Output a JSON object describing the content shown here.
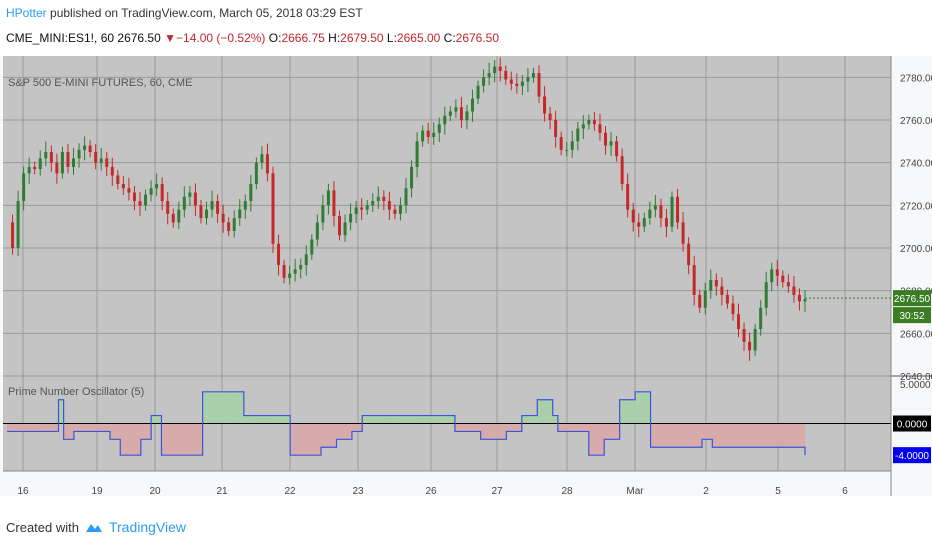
{
  "header": {
    "author": "HPotter",
    "published_text": "published on TradingView.com, March 05, 2018 03:29 EST",
    "symbol_line": {
      "symbol": "CME_MINI:ES1!, 60",
      "last": "2676.50",
      "change": "−14.00 (−0.52%)",
      "o_label": "O:",
      "o": "2666.75",
      "h_label": "H:",
      "h": "2679.50",
      "l_label": "L:",
      "l": "2665.00",
      "c_label": "C:",
      "c": "2676.50"
    }
  },
  "footer": {
    "created_with": "Created with",
    "brand": "TradingView",
    "logo_icon": "tradingview-logo-icon"
  },
  "colors": {
    "pane_bg": "#c4c4c4",
    "grid": "#9a9a9a",
    "up": "#2e7d32",
    "down": "#c62828",
    "osc_line": "#3a55d8",
    "fill_pos": "#a9cfa9",
    "fill_neg": "#d9a9a9",
    "price_tag": "#3a7d22",
    "zero_tag": "#000000",
    "neg_tag": "#0000ee"
  },
  "chart_data": [
    {
      "type": "candlestick",
      "title": "S&P 500 E-MINI FUTURES, 60, CME",
      "ylim": [
        2640,
        2790
      ],
      "yticks": [
        "2780.00",
        "2760.00",
        "2740.00",
        "2720.00",
        "2700.00",
        "2680.00",
        "2660.00",
        "2640.00"
      ],
      "last_price_tag": "2676.50",
      "countdown_tag": "30:52",
      "x_ticks": [
        "16",
        "19",
        "20",
        "21",
        "22",
        "23",
        "26",
        "27",
        "28",
        "Mar",
        "2",
        "5",
        "6"
      ],
      "close_path": [
        2712,
        2700,
        2722,
        2735,
        2738,
        2737,
        2742,
        2745,
        2740,
        2735,
        2745,
        2738,
        2742,
        2746,
        2748,
        2745,
        2740,
        2742,
        2738,
        2734,
        2730,
        2728,
        2726,
        2722,
        2720,
        2725,
        2728,
        2730,
        2722,
        2716,
        2712,
        2718,
        2724,
        2726,
        2720,
        2714,
        2718,
        2722,
        2716,
        2712,
        2708,
        2714,
        2718,
        2722,
        2730,
        2740,
        2744,
        2735,
        2702,
        2692,
        2686,
        2688,
        2690,
        2692,
        2697,
        2704,
        2712,
        2720,
        2727,
        2715,
        2706,
        2712,
        2716,
        2719,
        2718,
        2720,
        2722,
        2724,
        2722,
        2718,
        2716,
        2720,
        2728,
        2738,
        2750,
        2755,
        2752,
        2754,
        2758,
        2762,
        2764,
        2766,
        2760,
        2764,
        2770,
        2776,
        2780,
        2782,
        2785,
        2783,
        2779,
        2777,
        2776,
        2778,
        2780,
        2782,
        2771,
        2763,
        2760,
        2752,
        2746,
        2746,
        2750,
        2756,
        2758,
        2760,
        2758,
        2754,
        2748,
        2750,
        2743,
        2730,
        2718,
        2712,
        2710,
        2714,
        2718,
        2720,
        2714,
        2710,
        2724,
        2712,
        2702,
        2692,
        2678,
        2672,
        2680,
        2685,
        2682,
        2678,
        2674,
        2669,
        2662,
        2656,
        2652,
        2662,
        2672,
        2684,
        2690,
        2687,
        2684,
        2682,
        2678,
        2675,
        2676
      ]
    },
    {
      "type": "line",
      "title": "Prime Number Oscillator (5)",
      "ylim": [
        -6,
        6
      ],
      "yticks": [
        "5.0000"
      ],
      "last_value_tags": [
        "0.0000",
        "-4.0000"
      ],
      "values": [
        -1,
        -1,
        -1,
        -1,
        -1,
        -1,
        -1,
        -1,
        -1,
        -1,
        3,
        -2,
        -2,
        -1,
        -1,
        -1,
        -1,
        -1,
        -1,
        -1,
        -2,
        -2,
        -4,
        -4,
        -4,
        -4,
        -2,
        -2,
        1,
        1,
        -4,
        -4,
        -4,
        -4,
        -4,
        -4,
        -4,
        -4,
        4,
        4,
        4,
        4,
        4,
        4,
        4,
        4,
        1,
        1,
        1,
        1,
        1,
        1,
        1,
        1,
        1,
        -4,
        -4,
        -4,
        -4,
        -4,
        -4,
        -3,
        -3,
        -3,
        -2,
        -2,
        -2,
        -1,
        -1,
        1,
        1,
        1,
        1,
        1,
        1,
        1,
        1,
        1,
        1,
        1,
        1,
        1,
        1,
        1,
        1,
        1,
        1,
        -1,
        -1,
        -1,
        -1,
        -1,
        -2,
        -2,
        -2,
        -2,
        -2,
        -1,
        -1,
        -1,
        1,
        1,
        1,
        3,
        3,
        3,
        1,
        -1,
        -1,
        -1,
        -1,
        -1,
        -1,
        -4,
        -4,
        -4,
        -2,
        -2,
        -2,
        3,
        3,
        3,
        4,
        4,
        4,
        -3,
        -3,
        -3,
        -3,
        -3,
        -3,
        -3,
        -3,
        -3,
        -3,
        -2,
        -2,
        -3,
        -3,
        -3,
        -3,
        -3,
        -3,
        -3,
        -3,
        -3,
        -3,
        -3,
        -3,
        -3,
        -3,
        -3,
        -3,
        -3,
        -3,
        -4
      ],
      "zero_line": 0
    }
  ]
}
